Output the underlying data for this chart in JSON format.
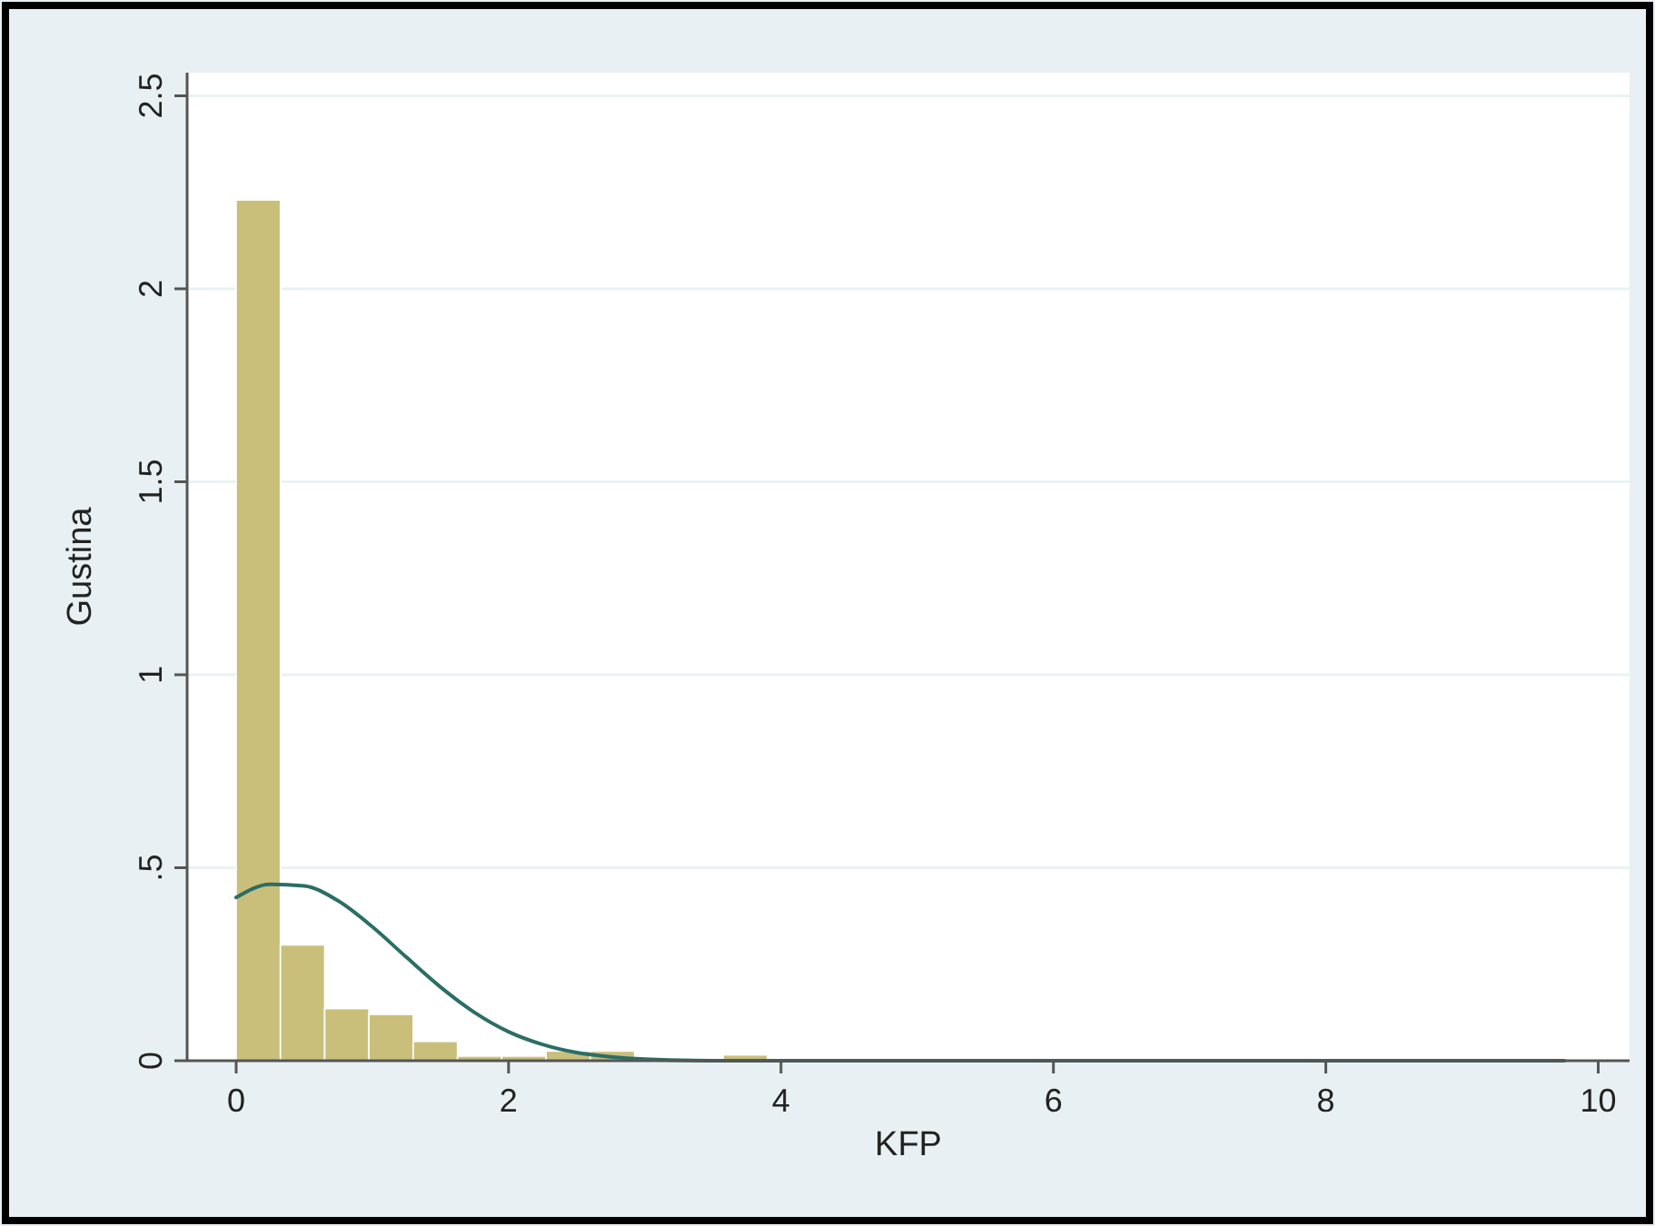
{
  "chart_data": {
    "type": "histogram",
    "xlabel": "KFP",
    "ylabel": "Gustina",
    "bins": [
      0,
      0.325,
      0.65,
      0.975,
      1.3,
      1.625,
      1.95,
      2.275,
      2.6,
      2.925,
      3.25,
      3.575,
      3.9,
      4.225,
      4.55,
      4.875,
      5.2,
      5.525,
      5.85,
      6.175,
      6.5,
      6.825,
      7.15,
      7.475,
      7.8,
      8.125,
      8.45,
      8.775,
      9.1,
      9.425,
      9.75
    ],
    "values": [
      2.23,
      0.3,
      0.135,
      0.12,
      0.05,
      0.012,
      0.012,
      0.025,
      0.025,
      0,
      0,
      0.015,
      0,
      0.005,
      0.005,
      0,
      0.005,
      0,
      0,
      0,
      0,
      0,
      0,
      0.005,
      0,
      0.005,
      0,
      0,
      0,
      0.005
    ],
    "color": "#c9bf7b",
    "series": [
      {
        "type": "line",
        "color": "#2b6e66",
        "x": [
          0,
          0.25,
          0.5,
          0.75,
          1,
          1.25,
          1.5,
          1.75,
          2,
          2.25,
          2.5,
          2.75,
          3,
          3.5,
          4,
          6,
          8,
          9.75
        ],
        "values": [
          0.423,
          0.457,
          0.453,
          0.414,
          0.347,
          0.268,
          0.191,
          0.125,
          0.075,
          0.042,
          0.021,
          0.01,
          0.004,
          0,
          0,
          0,
          0,
          0
        ]
      }
    ],
    "xlim": [
      -0.36,
      10.23
    ],
    "ylim": [
      0,
      2.56
    ],
    "xticks": [
      0,
      2,
      4,
      6,
      8,
      10
    ],
    "yticks": [
      0,
      {
        "value": 0.5,
        "label": ".5"
      },
      1,
      1.5,
      2,
      2.5
    ],
    "grid": "y"
  }
}
